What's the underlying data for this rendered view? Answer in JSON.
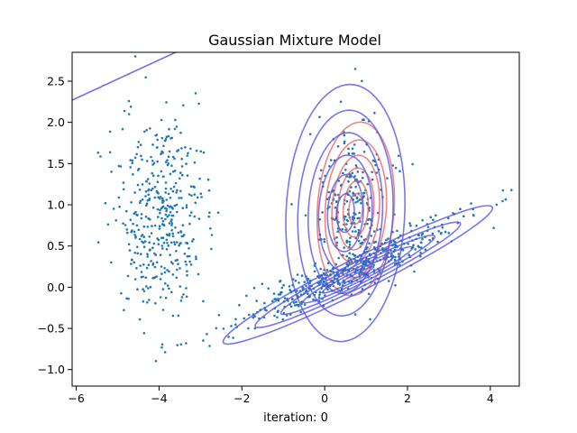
{
  "chart_data": {
    "type": "scatter",
    "title": "Gaussian Mixture Model",
    "xlabel": "iteration: 0",
    "ylabel": "",
    "xlim": [
      -6.1,
      4.7
    ],
    "ylim": [
      -1.2,
      2.85
    ],
    "xticks": [
      -6,
      -4,
      -2,
      0,
      2,
      4
    ],
    "yticks": [
      -1.0,
      -0.5,
      0.0,
      0.5,
      1.0,
      1.5,
      2.0,
      2.5
    ],
    "xtick_labels": [
      "−6",
      "−4",
      "−2",
      "0",
      "2",
      "4"
    ],
    "ytick_labels": [
      "−1.0",
      "−0.5",
      "0.0",
      "0.5",
      "1.0",
      "1.5",
      "2.0",
      "2.5"
    ],
    "grid": false,
    "point_color": "#1f77b4",
    "clusters": [
      {
        "cx": -4.0,
        "cy": 0.9,
        "sx": 0.55,
        "sy": 0.65,
        "rho": 0.0,
        "n": 420
      },
      {
        "cx": 0.65,
        "cy": 0.95,
        "sx": 0.45,
        "sy": 0.5,
        "rho": 0.1,
        "n": 260
      },
      {
        "cx": 0.6,
        "cy": 0.2,
        "sx": 1.35,
        "sy": 0.34,
        "rho": 0.93,
        "n": 420
      }
    ],
    "components": [
      {
        "color": "#e8686a",
        "cx": 0.75,
        "cy": 0.95,
        "sx": 0.55,
        "sy": 0.62,
        "rho": 0.12,
        "levels": [
          0.3,
          0.55,
          0.8,
          1.05,
          1.35,
          1.7
        ]
      },
      {
        "color": "#5555e8",
        "cx": 0.5,
        "cy": 0.9,
        "sx": 0.72,
        "sy": 0.78,
        "rho": 0.08,
        "levels": [
          0.3,
          0.6,
          0.9,
          1.25,
          1.6,
          2.0
        ]
      },
      {
        "color": "#5555e8",
        "cx": 0.8,
        "cy": 0.15,
        "sx": 1.55,
        "sy": 0.4,
        "rho": 0.965,
        "levels": [
          0.25,
          0.55,
          0.85,
          1.2,
          1.6,
          2.1
        ]
      },
      {
        "color": "#5555e8",
        "line": [
          [
            -6.1,
            2.27
          ],
          [
            -3.6,
            2.85
          ]
        ]
      }
    ]
  }
}
